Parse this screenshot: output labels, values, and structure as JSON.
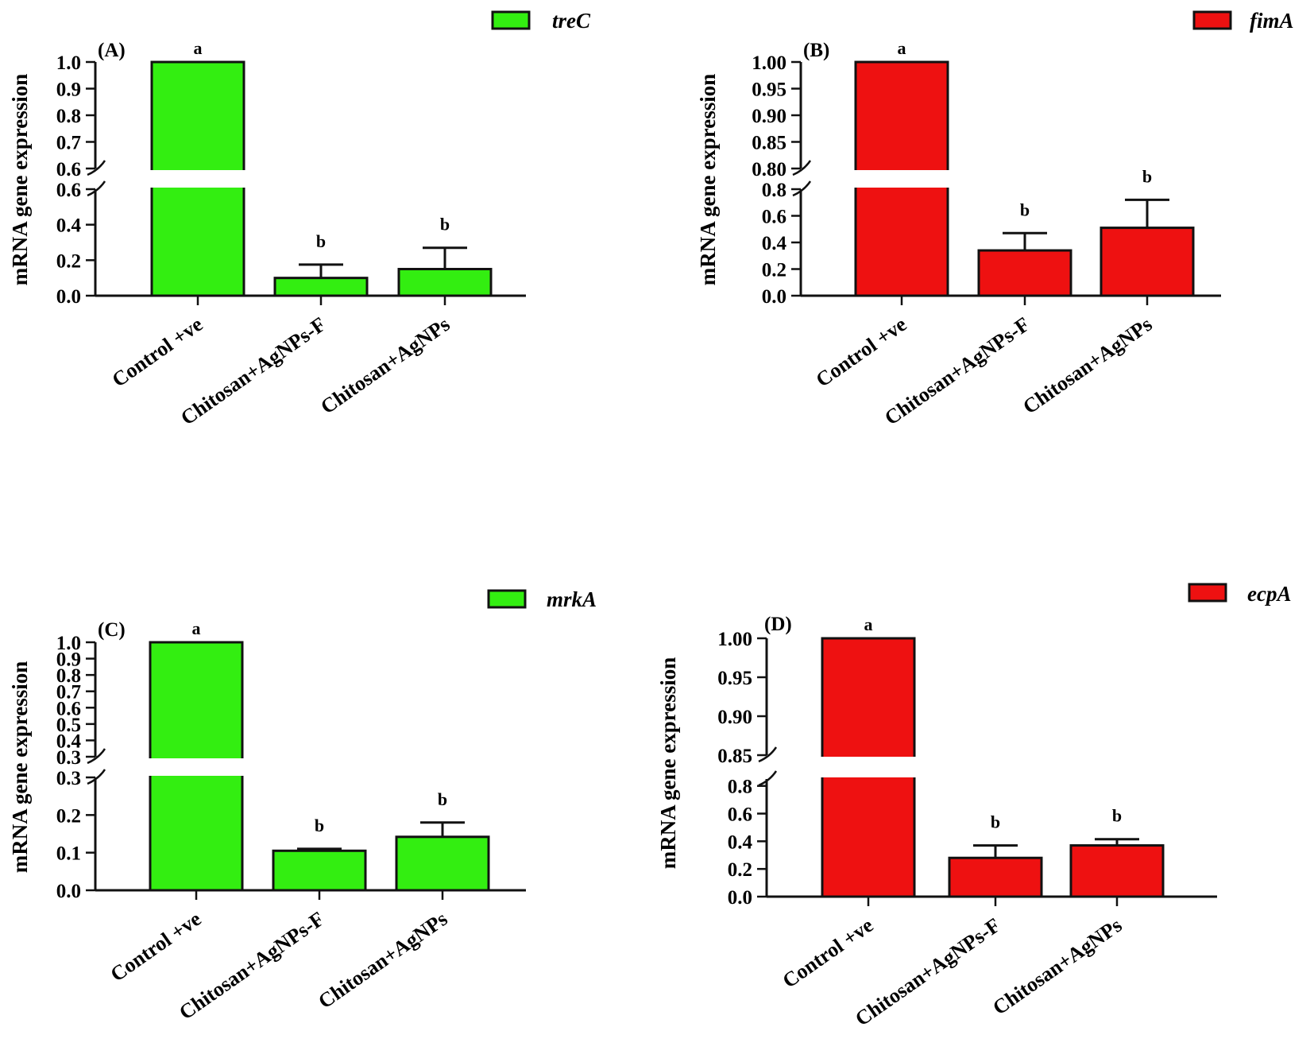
{
  "chart_data": [
    {
      "type": "bar",
      "panel": "(A)",
      "gene": "treC",
      "ylabel": "mRNA gene expression",
      "color": "#33ee11",
      "categories": [
        "Control +ve",
        "Chitosan+AgNPs-F",
        "Chitosan+AgNPs"
      ],
      "values": [
        1.0,
        0.1,
        0.15
      ],
      "errors": [
        0,
        0.075,
        0.12
      ],
      "significance": [
        "a",
        "b",
        "b"
      ],
      "axis_break": true,
      "lower_range": [
        0,
        0.6
      ],
      "lower_ticks": [
        "0.0",
        "0.2",
        "0.4",
        "0.6"
      ],
      "upper_range": [
        0.6,
        1.0
      ],
      "upper_ticks": [
        "0.6",
        "0.7",
        "0.8",
        "0.9",
        "1.0"
      ]
    },
    {
      "type": "bar",
      "panel": "(B)",
      "gene": "fimA",
      "ylabel": "mRNA gene expression",
      "color": "#ee1111",
      "categories": [
        "Control +ve",
        "Chitosan+AgNPs-F",
        "Chitosan+AgNPs"
      ],
      "values": [
        1.0,
        0.34,
        0.51
      ],
      "errors": [
        0,
        0.13,
        0.21
      ],
      "significance": [
        "a",
        "b",
        "b"
      ],
      "axis_break": true,
      "lower_range": [
        0,
        0.8
      ],
      "lower_ticks": [
        "0.0",
        "0.2",
        "0.4",
        "0.6",
        "0.8"
      ],
      "upper_range": [
        0.8,
        1.0
      ],
      "upper_ticks": [
        "0.80",
        "0.85",
        "0.90",
        "0.95",
        "1.00"
      ]
    },
    {
      "type": "bar",
      "panel": "(C)",
      "gene": "mrkA",
      "ylabel": "mRNA gene expression",
      "color": "#33ee11",
      "categories": [
        "Control +ve",
        "Chitosan+AgNPs-F",
        "Chitosan+AgNPs"
      ],
      "values": [
        1.0,
        0.105,
        0.142
      ],
      "errors": [
        0,
        0.005,
        0.038
      ],
      "significance": [
        "a",
        "b",
        "b"
      ],
      "axis_break": true,
      "lower_range": [
        0,
        0.3
      ],
      "lower_ticks": [
        "0.0",
        "0.1",
        "0.2",
        "0.3"
      ],
      "upper_range": [
        0.3,
        1.0
      ],
      "upper_ticks": [
        "0.3",
        "0.4",
        "0.5",
        "0.6",
        "0.7",
        "0.8",
        "0.9",
        "1.0"
      ]
    },
    {
      "type": "bar",
      "panel": "(D)",
      "gene": "ecpA",
      "ylabel": "mRNA gene expression",
      "color": "#ee1111",
      "categories": [
        "Control +ve",
        "Chitosan+AgNPs-F",
        "Chitosan+AgNPs"
      ],
      "values": [
        1.0,
        0.28,
        0.37
      ],
      "errors": [
        0,
        0.09,
        0.045
      ],
      "significance": [
        "a",
        "b",
        "b"
      ],
      "axis_break": true,
      "lower_range": [
        0,
        0.85
      ],
      "lower_ticks": [
        "0.0",
        "0.2",
        "0.4",
        "0.6",
        "0.8"
      ],
      "upper_range": [
        0.85,
        1.0
      ],
      "upper_ticks": [
        "0.85",
        "0.90",
        "0.95",
        "1.00"
      ]
    }
  ]
}
